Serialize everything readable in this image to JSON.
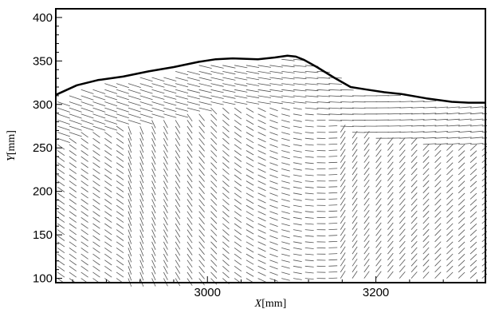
{
  "chart_data": {
    "type": "vector_field",
    "xlabel": {
      "symbol": "X",
      "unit": "[mm]"
    },
    "ylabel": {
      "symbol": "Y",
      "unit": "[mm]"
    },
    "xlim": [
      2820,
      3330
    ],
    "ylim": [
      95,
      410
    ],
    "x_ticks": [
      3000,
      3200
    ],
    "y_ticks": [
      100,
      150,
      200,
      250,
      300,
      350,
      400
    ],
    "x_tick_labels": [
      "3000",
      "3200"
    ],
    "y_tick_labels": [
      "100",
      "150",
      "200",
      "250",
      "300",
      "350",
      "400"
    ],
    "surface_profile": {
      "x": [
        2820,
        2845,
        2870,
        2900,
        2930,
        2960,
        2990,
        3010,
        3030,
        3060,
        3080,
        3095,
        3105,
        3115,
        3130,
        3150,
        3170,
        3190,
        3210,
        3230,
        3260,
        3290,
        3310,
        3330
      ],
      "y": [
        311,
        322,
        328,
        332,
        338,
        343,
        349,
        352,
        353,
        352,
        354,
        356,
        355,
        351,
        343,
        331,
        320,
        317,
        314,
        312,
        307,
        303,
        302,
        302
      ]
    },
    "vector_field": {
      "x_start": 2822,
      "x_step": 14,
      "y_start": 100,
      "y_step": 7,
      "arrow_scale_mm": 12
    },
    "colors": {
      "axis": "#000000",
      "surface": "#000000",
      "vectors": "#555555"
    }
  }
}
